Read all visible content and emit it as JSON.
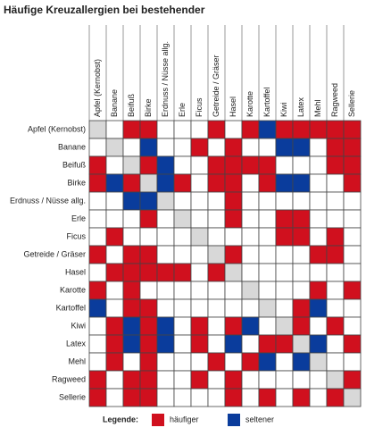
{
  "header": {
    "title": "Häufige Kreuzallergien bei bestehender"
  },
  "table": {
    "columns": [
      "Apfel (Kernobst)",
      "Banane",
      "Beifuß",
      "Birke",
      "Erdnuss / Nüsse allg.",
      "Erle",
      "Ficus",
      "Getreide / Gräser",
      "Hasel",
      "Karotte",
      "Kartoffel",
      "Kiwi",
      "Latex",
      "Mehl",
      "Ragweed",
      "Sellerie"
    ],
    "rows": [
      "Apfel (Kernobst)",
      "Banane",
      "Beifuß",
      "Birke",
      "Erdnuss / Nüsse allg.",
      "Erle",
      "Ficus",
      "Getreide / Gräser",
      "Hasel",
      "Karotte",
      "Kartoffel",
      "Kiwi",
      "Latex",
      "Mehl",
      "Ragweed",
      "Sellerie"
    ],
    "cells": [
      [
        "d",
        "n",
        "h",
        "h",
        "n",
        "n",
        "n",
        "h",
        "n",
        "h",
        "s",
        "h",
        "h",
        "h",
        "h",
        "h"
      ],
      [
        "n",
        "d",
        "n",
        "s",
        "n",
        "n",
        "h",
        "n",
        "h",
        "n",
        "n",
        "s",
        "s",
        "n",
        "h",
        "h"
      ],
      [
        "h",
        "n",
        "d",
        "h",
        "s",
        "n",
        "n",
        "h",
        "h",
        "h",
        "h",
        "n",
        "n",
        "n",
        "h",
        "h"
      ],
      [
        "h",
        "s",
        "h",
        "d",
        "s",
        "h",
        "n",
        "h",
        "h",
        "n",
        "h",
        "s",
        "s",
        "n",
        "n",
        "h"
      ],
      [
        "n",
        "n",
        "s",
        "s",
        "d",
        "n",
        "n",
        "n",
        "h",
        "n",
        "n",
        "n",
        "n",
        "n",
        "n",
        "n"
      ],
      [
        "n",
        "n",
        "n",
        "h",
        "n",
        "d",
        "n",
        "n",
        "h",
        "n",
        "n",
        "h",
        "h",
        "n",
        "n",
        "n"
      ],
      [
        "n",
        "h",
        "n",
        "n",
        "n",
        "n",
        "d",
        "n",
        "n",
        "n",
        "n",
        "h",
        "h",
        "n",
        "h",
        "n"
      ],
      [
        "h",
        "n",
        "h",
        "h",
        "n",
        "n",
        "n",
        "d",
        "h",
        "n",
        "n",
        "n",
        "n",
        "h",
        "h",
        "n"
      ],
      [
        "n",
        "h",
        "h",
        "h",
        "h",
        "h",
        "n",
        "h",
        "d",
        "n",
        "n",
        "n",
        "n",
        "n",
        "n",
        "n"
      ],
      [
        "h",
        "n",
        "h",
        "n",
        "n",
        "n",
        "n",
        "n",
        "n",
        "d",
        "n",
        "n",
        "n",
        "h",
        "n",
        "h"
      ],
      [
        "s",
        "n",
        "h",
        "h",
        "n",
        "n",
        "n",
        "n",
        "n",
        "n",
        "d",
        "n",
        "h",
        "s",
        "n",
        "n"
      ],
      [
        "n",
        "h",
        "s",
        "h",
        "s",
        "n",
        "h",
        "n",
        "h",
        "s",
        "n",
        "d",
        "h",
        "n",
        "h",
        "n"
      ],
      [
        "n",
        "h",
        "s",
        "h",
        "s",
        "n",
        "h",
        "n",
        "s",
        "n",
        "h",
        "h",
        "d",
        "s",
        "n",
        "h"
      ],
      [
        "n",
        "h",
        "n",
        "h",
        "n",
        "n",
        "n",
        "h",
        "n",
        "h",
        "s",
        "n",
        "s",
        "d",
        "n",
        "n"
      ],
      [
        "h",
        "n",
        "h",
        "h",
        "n",
        "n",
        "h",
        "n",
        "h",
        "n",
        "n",
        "n",
        "n",
        "n",
        "d",
        "h"
      ],
      [
        "h",
        "n",
        "h",
        "h",
        "n",
        "n",
        "n",
        "n",
        "h",
        "n",
        "h",
        "n",
        "h",
        "n",
        "h",
        "d"
      ]
    ]
  },
  "legend": {
    "title": "Legende:",
    "items": [
      {
        "label": "häufiger",
        "color": "#d0101e"
      },
      {
        "label": "seltener",
        "color": "#0a3c9c"
      }
    ]
  }
}
